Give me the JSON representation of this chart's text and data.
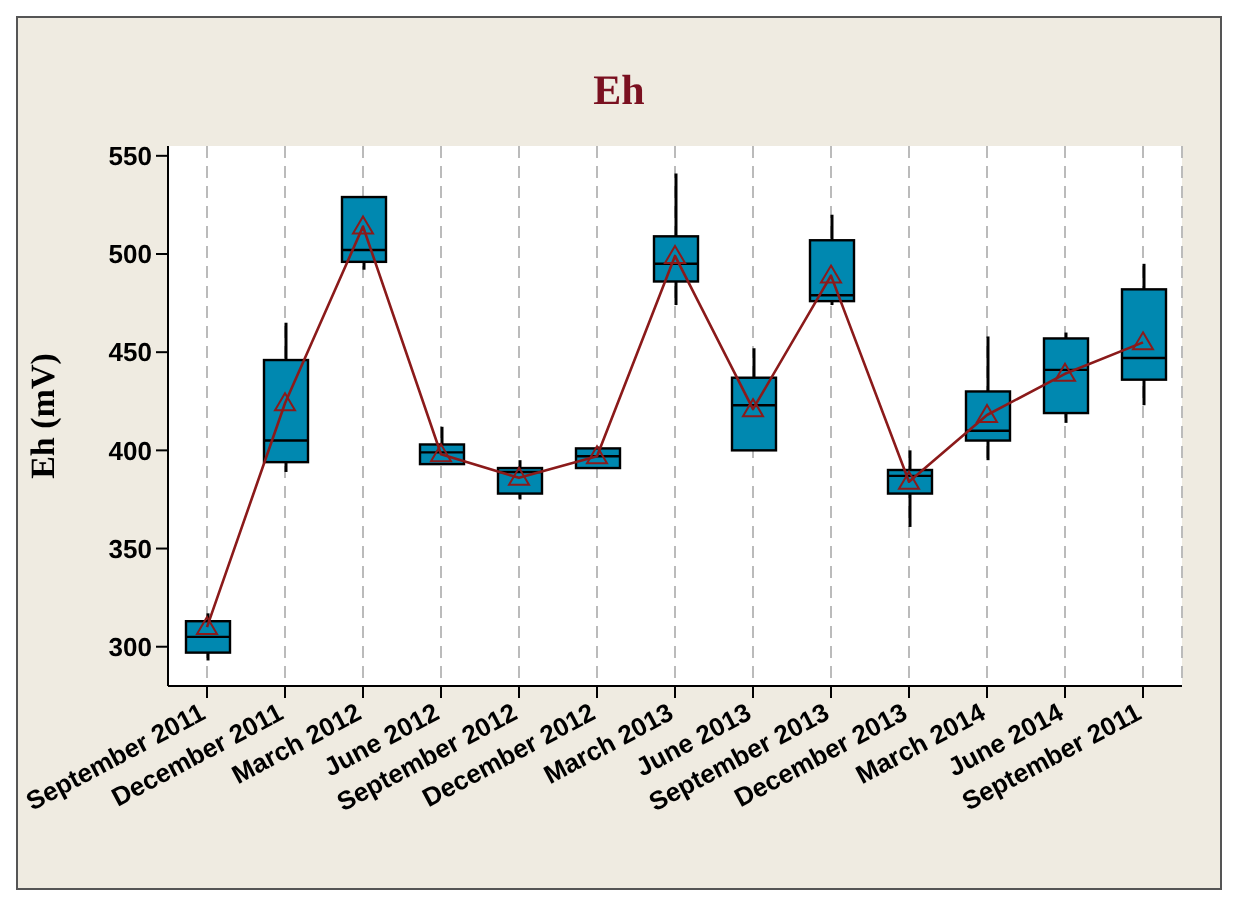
{
  "chart_data": {
    "type": "box",
    "title": "Eh",
    "ylabel": "Eh (mV)",
    "categories": [
      "September 2011",
      "December 2011",
      "March 2012",
      "June 2012",
      "September 2012",
      "December 2012",
      "March 2013",
      "June 2013",
      "September 2013",
      "December 2013",
      "March 2014",
      "June 2014",
      "September 2011"
    ],
    "ylim": [
      280,
      555
    ],
    "yticks": [
      300,
      350,
      400,
      450,
      500,
      550
    ],
    "grid": "x",
    "series": [
      {
        "color": "#0088b0",
        "boxes": [
          {
            "low": 293,
            "q1": 297,
            "median": 305,
            "q3": 313,
            "high": 317
          },
          {
            "low": 389,
            "q1": 394,
            "median": 405,
            "q3": 446,
            "high": 465
          },
          {
            "low": 492,
            "q1": 496,
            "median": 502,
            "q3": 529,
            "high": 529
          },
          {
            "low": 393,
            "q1": 393,
            "median": 399,
            "q3": 403,
            "high": 412
          },
          {
            "low": 375,
            "q1": 378,
            "median": 389,
            "q3": 391,
            "high": 395
          },
          {
            "low": 391,
            "q1": 391,
            "median": 397,
            "q3": 401,
            "high": 402
          },
          {
            "low": 474,
            "q1": 486,
            "median": 495,
            "q3": 509,
            "high": 541
          },
          {
            "low": 400,
            "q1": 400,
            "median": 423,
            "q3": 437,
            "high": 452
          },
          {
            "low": 474,
            "q1": 476,
            "median": 479,
            "q3": 507,
            "high": 520
          },
          {
            "low": 361,
            "q1": 378,
            "median": 387,
            "q3": 390,
            "high": 400
          },
          {
            "low": 395,
            "q1": 405,
            "median": 410,
            "q3": 430,
            "high": 458
          },
          {
            "low": 414,
            "q1": 419,
            "median": 441,
            "q3": 457,
            "high": 460
          },
          {
            "low": 423,
            "q1": 436,
            "median": 447,
            "q3": 482,
            "high": 495
          }
        ]
      },
      {
        "type": "line",
        "color": "#8b1a1a",
        "marker": "triangle",
        "values": [
          310,
          424,
          514,
          398,
          386,
          397,
          499,
          421,
          489,
          384,
          418,
          439,
          455
        ]
      }
    ]
  }
}
